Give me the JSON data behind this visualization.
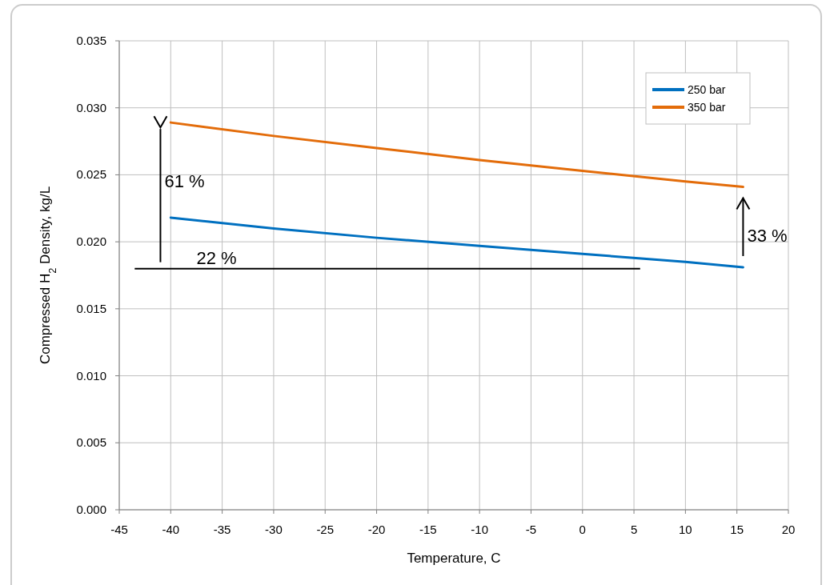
{
  "chart_data": {
    "type": "line",
    "xlabel": "Temperature, C",
    "ylabel": "Compressed H$_{2}$ Density, kg/L",
    "x": [
      -40,
      -30,
      -20,
      -10,
      0,
      10,
      15.6
    ],
    "series": [
      {
        "name": "250 bar",
        "color": "#0070c0",
        "values": [
          0.0218,
          0.021,
          0.0203,
          0.0197,
          0.0191,
          0.0185,
          0.0181
        ]
      },
      {
        "name": "350 bar",
        "color": "#e36c0a",
        "values": [
          0.0289,
          0.0279,
          0.027,
          0.0261,
          0.0253,
          0.0245,
          0.0241
        ]
      }
    ],
    "xlim": [
      -45,
      20
    ],
    "xticks": [
      -45,
      -40,
      -35,
      -30,
      -25,
      -20,
      -15,
      -10,
      -5,
      0,
      5,
      10,
      15,
      20
    ],
    "ylim": [
      0,
      0.035
    ],
    "yticks": [
      {
        "value": 0,
        "label": "0.000"
      },
      0.005,
      {
        "value": 0.01,
        "label": "0.010"
      },
      0.015,
      {
        "value": 0.02,
        "label": "0.020"
      },
      0.025,
      {
        "value": 0.03,
        "label": "0.030"
      },
      0.035
    ],
    "ref_lines": [
      {
        "axis": "y",
        "value": 0.018,
        "color": "#000000"
      }
    ],
    "annotations": [
      "61 %",
      "33 %",
      "22 %"
    ],
    "grid": true,
    "legend": "top right",
    "line_style": "solid"
  }
}
